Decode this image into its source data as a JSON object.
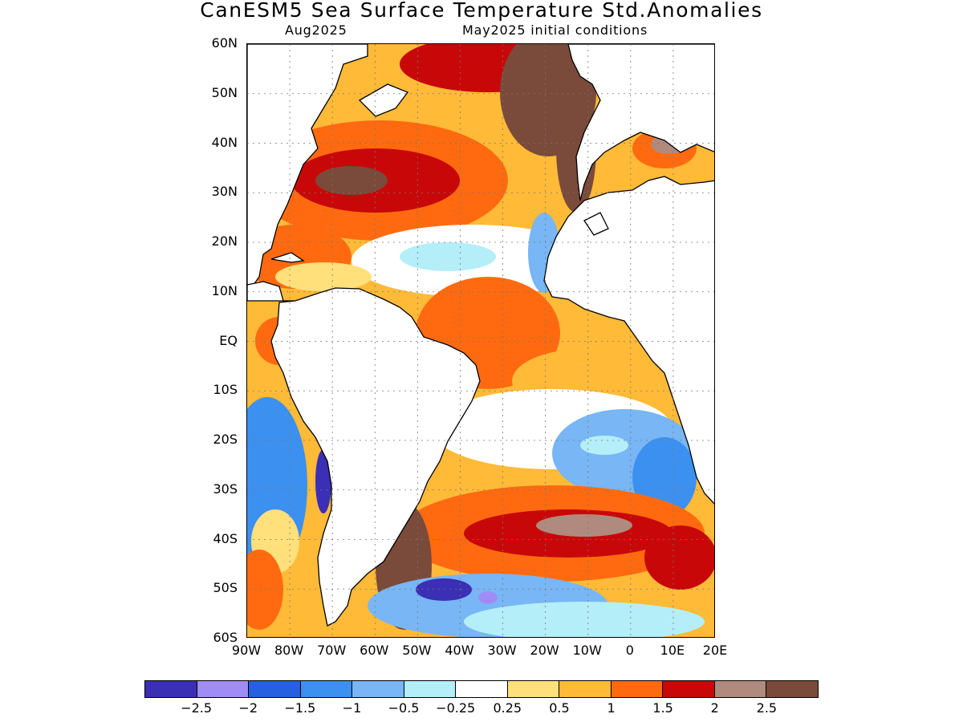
{
  "title": "CanESM5 Sea Surface Temperature Std.Anomalies",
  "subtitle_left": "Aug2025",
  "subtitle_right": "May2025 initial conditions",
  "map": {
    "lat_labels": [
      "60N",
      "50N",
      "40N",
      "30N",
      "20N",
      "10N",
      "EQ",
      "10S",
      "20S",
      "30S",
      "40S",
      "50S",
      "60S"
    ],
    "lon_labels": [
      "90W",
      "80W",
      "70W",
      "60W",
      "50W",
      "40W",
      "30W",
      "20W",
      "10W",
      "0",
      "10E",
      "20E"
    ],
    "lat_range": [
      -60,
      60
    ],
    "lon_range": [
      -90,
      20
    ],
    "grid": "dotted"
  },
  "colorbar": {
    "colors": [
      "#3a2fb5",
      "#9f8df5",
      "#2460e0",
      "#3c90f0",
      "#78b6f5",
      "#b4eef8",
      "#ffffff",
      "#ffe07a",
      "#ffba38",
      "#ff6a10",
      "#c80808",
      "#b08a7e",
      "#7a4a3a"
    ],
    "labels": [
      "−2.5",
      "−2",
      "−1.5",
      "−1",
      "−0.5",
      "−0.25",
      "0.25",
      "0.5",
      "1",
      "1.5",
      "2",
      "2.5"
    ]
  }
}
